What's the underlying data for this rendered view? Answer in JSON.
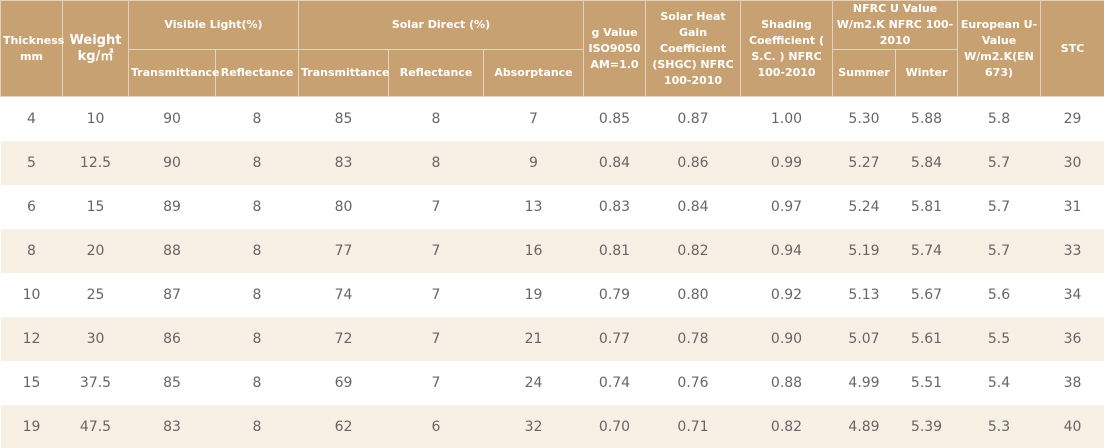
{
  "table": {
    "header": {
      "thickness": "Thickness mm",
      "weight": "Weight kg/㎡",
      "visible_light": "Visible Light(%)",
      "solar_direct": "Solar  Direct (%)",
      "g_value": "g Value ISO9050 AM=1.0",
      "shgc": "Solar Heat Gain Coefficient (SHGC) NFRC 100-2010",
      "shading": "Shading Coefficient ( S.C. ) NFRC 100-2010",
      "nfrc_u": "NFRC U Value W/m2.K NFRC 100-2010",
      "eu_u": "European U-Value W/m2.K(EN 673)",
      "stc": "STC",
      "vl_transmittance": "Transmittance",
      "vl_reflectance": "Reflectance",
      "sd_transmittance": "Transmittance",
      "sd_reflectance": "Reflectance",
      "sd_absorptance": "Absorptance",
      "summer": "Summer",
      "winter": "Winter"
    },
    "rows": [
      [
        "4",
        "10",
        "90",
        "8",
        "85",
        "8",
        "7",
        "0.85",
        "0.87",
        "1.00",
        "5.30",
        "5.88",
        "5.8",
        "29"
      ],
      [
        "5",
        "12.5",
        "90",
        "8",
        "83",
        "8",
        "9",
        "0.84",
        "0.86",
        "0.99",
        "5.27",
        "5.84",
        "5.7",
        "30"
      ],
      [
        "6",
        "15",
        "89",
        "8",
        "80",
        "7",
        "13",
        "0.83",
        "0.84",
        "0.97",
        "5.24",
        "5.81",
        "5.7",
        "31"
      ],
      [
        "8",
        "20",
        "88",
        "8",
        "77",
        "7",
        "16",
        "0.81",
        "0.82",
        "0.94",
        "5.19",
        "5.74",
        "5.7",
        "33"
      ],
      [
        "10",
        "25",
        "87",
        "8",
        "74",
        "7",
        "19",
        "0.79",
        "0.80",
        "0.92",
        "5.13",
        "5.67",
        "5.6",
        "34"
      ],
      [
        "12",
        "30",
        "86",
        "8",
        "72",
        "7",
        "21",
        "0.77",
        "0.78",
        "0.90",
        "5.07",
        "5.61",
        "5.5",
        "36"
      ],
      [
        "15",
        "37.5",
        "85",
        "8",
        "69",
        "7",
        "24",
        "0.74",
        "0.76",
        "0.88",
        "4.99",
        "5.51",
        "5.4",
        "38"
      ],
      [
        "19",
        "47.5",
        "83",
        "8",
        "62",
        "6",
        "32",
        "0.70",
        "0.71",
        "0.82",
        "4.89",
        "5.39",
        "5.3",
        "40"
      ]
    ]
  }
}
